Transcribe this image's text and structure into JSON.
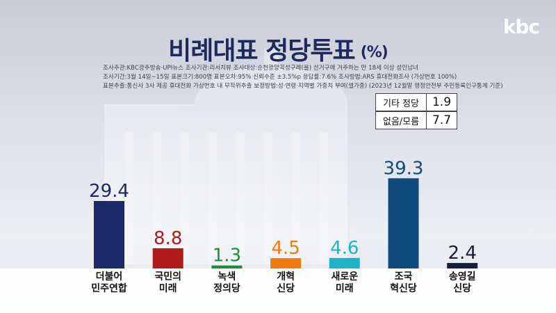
{
  "brand": {
    "logo_text": "kbc"
  },
  "header": {
    "title": "비례대표 정당투표",
    "unit": "(%)"
  },
  "meta_lines": [
    "조사주관:KBC광주방송·UPI뉴스    조사기관:리서치뷰    조사대상:순천광양곡성구례(을) 선거구에 거주하는 만 18세 이상 성인남녀",
    "조사기간:3월 14일~15일    표본크기:800명    표본오차:95% 신뢰수준 ±3.5%p    응답률:7.6%    조사방법:ARS 휴대전화조사 (가상번호 100%)",
    "표본추출:통신사 3사 제공 휴대전화 가상번호 내 무작위추출    보정방법:성·연령·지역별 가중치 부여(셀가중) (2023년 12월말 행정안전부 주민등록인구통계 기준)"
  ],
  "side_items": [
    {
      "label": "기타 정당",
      "value": "1.9"
    },
    {
      "label": "없음/모름",
      "value": "7.7"
    }
  ],
  "chart_data": {
    "type": "bar",
    "title": "비례대표 정당투표",
    "unit": "(%)",
    "categories": [
      "더불어\n민주연합",
      "국민의\n미래",
      "녹색\n정의당",
      "개혁\n신당",
      "새로운\n미래",
      "조국\n혁신당",
      "송영길\n신당"
    ],
    "values": [
      29.4,
      8.8,
      1.3,
      4.5,
      4.6,
      39.3,
      2.4
    ],
    "value_labels": [
      "29.4",
      "8.8",
      "1.3",
      "4.5",
      "4.6",
      "39.3",
      "2.4"
    ],
    "colors": [
      "#1b2766",
      "#b01c1c",
      "#1e8c3a",
      "#f07a12",
      "#22b2c8",
      "#0f4a7e",
      "#152038"
    ],
    "ylim": [
      0,
      40
    ],
    "grid": false,
    "legend": "none"
  }
}
